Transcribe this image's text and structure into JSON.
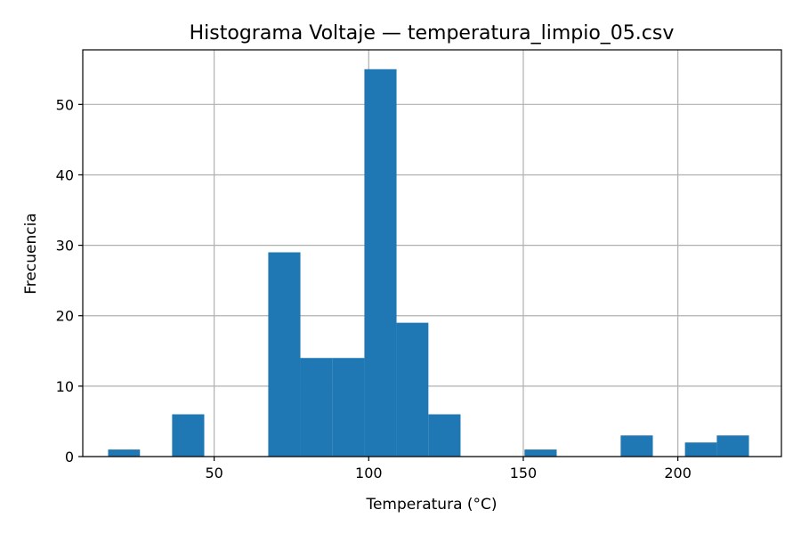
{
  "chart_data": {
    "type": "bar",
    "title": "Histograma Voltaje — temperatura_limpio_05.csv",
    "xlabel": "Temperatura (°C)",
    "ylabel": "Frecuencia",
    "xlim": [
      7.5,
      233.5
    ],
    "ylim": [
      0,
      57.75
    ],
    "xticks": [
      50,
      100,
      150,
      200
    ],
    "yticks": [
      0,
      10,
      20,
      30,
      40,
      50
    ],
    "grid": true,
    "bar_color": "#1f77b4",
    "bins": [
      {
        "x0": 15.7,
        "x1": 26.0,
        "count": 1
      },
      {
        "x0": 26.0,
        "x1": 36.4,
        "count": 0
      },
      {
        "x0": 36.4,
        "x1": 46.8,
        "count": 6
      },
      {
        "x0": 46.8,
        "x1": 57.1,
        "count": 0
      },
      {
        "x0": 57.1,
        "x1": 67.5,
        "count": 0
      },
      {
        "x0": 67.5,
        "x1": 77.9,
        "count": 29
      },
      {
        "x0": 77.9,
        "x1": 88.2,
        "count": 14
      },
      {
        "x0": 88.2,
        "x1": 98.6,
        "count": 14
      },
      {
        "x0": 98.6,
        "x1": 109.0,
        "count": 55
      },
      {
        "x0": 109.0,
        "x1": 119.3,
        "count": 19
      },
      {
        "x0": 119.3,
        "x1": 129.7,
        "count": 6
      },
      {
        "x0": 129.7,
        "x1": 140.1,
        "count": 0
      },
      {
        "x0": 140.1,
        "x1": 150.4,
        "count": 0
      },
      {
        "x0": 150.4,
        "x1": 160.8,
        "count": 1
      },
      {
        "x0": 160.8,
        "x1": 171.2,
        "count": 0
      },
      {
        "x0": 171.2,
        "x1": 181.5,
        "count": 0
      },
      {
        "x0": 181.5,
        "x1": 191.9,
        "count": 3
      },
      {
        "x0": 191.9,
        "x1": 202.3,
        "count": 0
      },
      {
        "x0": 202.3,
        "x1": 212.6,
        "count": 2
      },
      {
        "x0": 212.6,
        "x1": 223.0,
        "count": 3
      }
    ]
  }
}
